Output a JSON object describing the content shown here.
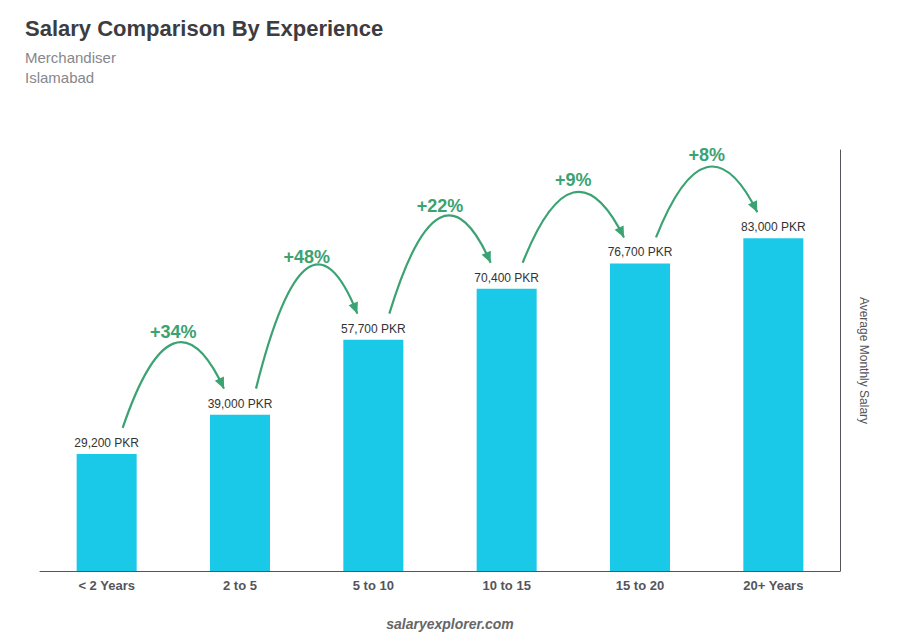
{
  "chart_data": {
    "type": "bar",
    "title": "Salary Comparison By Experience",
    "subtitle": [
      "Merchandiser",
      "Islamabad"
    ],
    "ylabel": "Average Monthly Salary",
    "categories": [
      "< 2 Years",
      "2 to 5",
      "5 to 10",
      "10 to 15",
      "15 to 20",
      "20+ Years"
    ],
    "values": [
      29200,
      39000,
      57700,
      70400,
      76700,
      83000
    ],
    "value_labels": [
      "29,200 PKR",
      "39,000 PKR",
      "57,700 PKR",
      "70,400 PKR",
      "76,700 PKR",
      "83,000 PKR"
    ],
    "data_labels": true,
    "annotations": [
      "+34%",
      "+48%",
      "+22%",
      "+9%",
      "+8%"
    ],
    "watermark": "salaryexplorer.com",
    "color": "#1ac8e8",
    "ylim": [
      0,
      105000
    ],
    "grid": false,
    "tick_labels": "x"
  }
}
